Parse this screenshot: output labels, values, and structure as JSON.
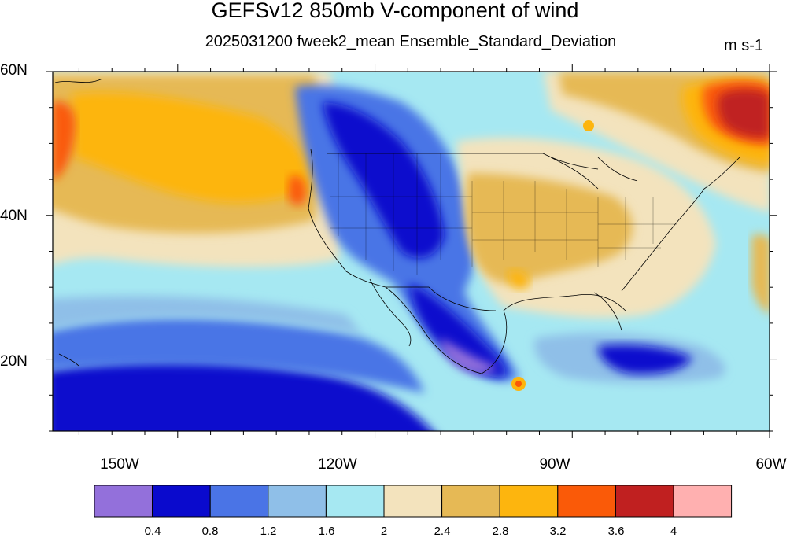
{
  "title": "GEFSv12 850mb V-component of wind",
  "subtitle": "2025031200 fweek2_mean Ensemble_Standard_Deviation",
  "units": "m s-1",
  "lat_labels": [
    "60N",
    "40N",
    "20N"
  ],
  "lon_labels": [
    "150W",
    "120W",
    "90W",
    "60W"
  ],
  "colorbar": {
    "levels": [
      "0.4",
      "0.8",
      "1.2",
      "1.6",
      "2",
      "2.4",
      "2.8",
      "3.2",
      "3.6",
      "4"
    ],
    "colors": [
      "#9370db",
      "#0a0acd",
      "#4a74e6",
      "#8fbfe8",
      "#a6e8f2",
      "#f3e3bd",
      "#e6b955",
      "#fdb50e",
      "#fa5a08",
      "#c02020",
      "#ffb0b0"
    ]
  },
  "map_extent": {
    "lon": [
      -169,
      -60
    ],
    "lat": [
      10,
      60
    ]
  }
}
